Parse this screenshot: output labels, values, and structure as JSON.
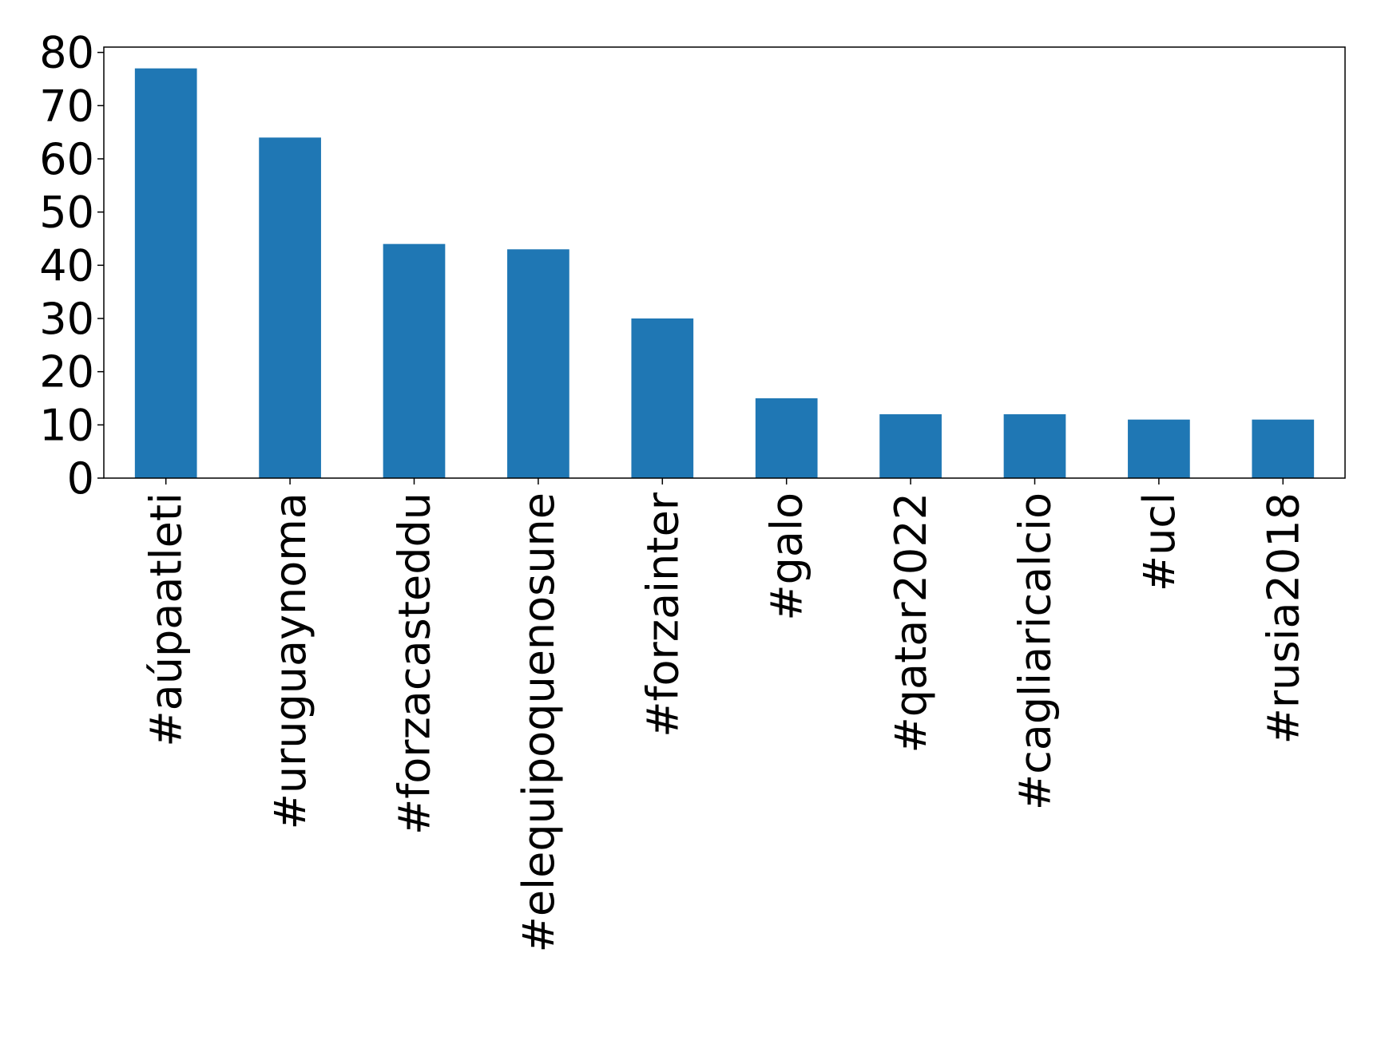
{
  "chart_data": {
    "type": "bar",
    "title": "",
    "xlabel": "",
    "ylabel": "",
    "categories": [
      "#aúpaatleti",
      "#uruguaynoma",
      "#forzacasteddu",
      "#elequipoquenosune",
      "#forzainter",
      "#galo",
      "#qatar2022",
      "#cagliaricalcio",
      "#ucl",
      "#rusia2018"
    ],
    "values": [
      77,
      64,
      44,
      43,
      30,
      15,
      12,
      12,
      11,
      11
    ],
    "ylim": [
      0,
      81
    ],
    "yticks": [
      0,
      10,
      20,
      30,
      40,
      50,
      60,
      70,
      80
    ],
    "xtick_rotation": "vertical",
    "grid": false,
    "legend": "none",
    "bar_color": "#1f77b4"
  }
}
